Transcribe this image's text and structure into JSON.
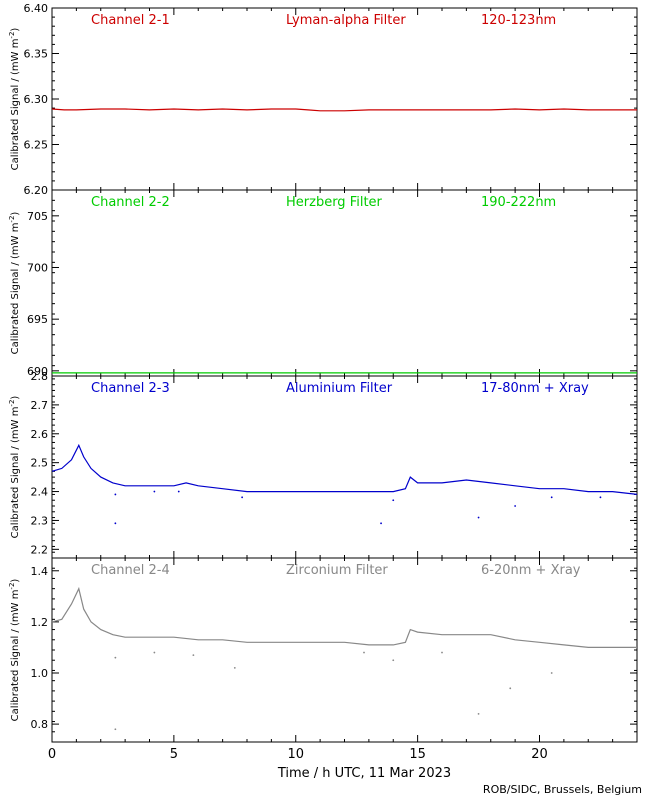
{
  "figure": {
    "xlabel": "Time / h UTC, 11 Mar 2023",
    "credit": "ROB/SIDC, Brussels, Belgium",
    "xlim": [
      0,
      24
    ],
    "xticks": [
      0,
      5,
      10,
      15,
      20
    ]
  },
  "chart_data": [
    {
      "type": "line",
      "channel": "Channel 2-1",
      "filter": "Lyman-alpha Filter",
      "band": "120-123nm",
      "color": "#cc0000",
      "ylabel": "Calibrated Signal / (mW m",
      "ylabel_sup": "-2",
      "ylabel_close": ")",
      "ylim": [
        6.2,
        6.4
      ],
      "yticks": [
        6.2,
        6.25,
        6.3,
        6.35,
        6.4
      ],
      "yticklabels": [
        "6.20",
        "6.25",
        "6.30",
        "6.35",
        "6.40"
      ],
      "x": [
        0,
        0.5,
        1,
        2,
        3,
        4,
        5,
        6,
        7,
        8,
        9,
        10,
        10.5,
        11,
        12,
        13,
        14,
        15,
        16,
        17,
        18,
        19,
        20,
        21,
        22,
        23,
        24
      ],
      "y": [
        6.289,
        6.288,
        6.288,
        6.289,
        6.289,
        6.288,
        6.289,
        6.288,
        6.289,
        6.288,
        6.289,
        6.289,
        6.288,
        6.287,
        6.287,
        6.288,
        6.288,
        6.288,
        6.288,
        6.288,
        6.288,
        6.289,
        6.288,
        6.289,
        6.288,
        6.288,
        6.288
      ],
      "outliers": []
    },
    {
      "type": "line",
      "channel": "Channel 2-2",
      "filter": "Herzberg Filter",
      "band": "190-222nm",
      "color": "#00cc00",
      "ylabel": "Calibrated Signal / (mW m",
      "ylabel_sup": "-2",
      "ylabel_close": ")",
      "ylim": [
        689.5,
        707.5
      ],
      "yticks": [
        690,
        695,
        700,
        705
      ],
      "yticklabels": [
        "690",
        "695",
        "700",
        "705"
      ],
      "x": [
        0,
        24
      ],
      "y": [
        689.8,
        689.8
      ],
      "outliers": []
    },
    {
      "type": "line",
      "channel": "Channel 2-3",
      "filter": "Aluminium Filter",
      "band": "17-80nm + Xray",
      "color": "#0000cc",
      "ylabel": "Calibrated Signal / (mW m",
      "ylabel_sup": "-2",
      "ylabel_close": ")",
      "ylim": [
        2.17,
        2.8
      ],
      "yticks": [
        2.2,
        2.3,
        2.4,
        2.5,
        2.6,
        2.7,
        2.8
      ],
      "yticklabels": [
        "2.2",
        "2.3",
        "2.4",
        "2.5",
        "2.6",
        "2.7",
        "2.8"
      ],
      "x": [
        0,
        0.4,
        0.8,
        1.1,
        1.3,
        1.6,
        2,
        2.5,
        3,
        4,
        5,
        5.5,
        6,
        7,
        8,
        9,
        10,
        11,
        12,
        13,
        14,
        14.5,
        14.7,
        15,
        16,
        17,
        18,
        19,
        20,
        21,
        22,
        23,
        24
      ],
      "y": [
        2.47,
        2.48,
        2.51,
        2.56,
        2.52,
        2.48,
        2.45,
        2.43,
        2.42,
        2.42,
        2.42,
        2.43,
        2.42,
        2.41,
        2.4,
        2.4,
        2.4,
        2.4,
        2.4,
        2.4,
        2.4,
        2.41,
        2.45,
        2.43,
        2.43,
        2.44,
        2.43,
        2.42,
        2.41,
        2.41,
        2.4,
        2.4,
        2.39
      ],
      "outliers": [
        [
          2.6,
          2.29
        ],
        [
          2.6,
          2.39
        ],
        [
          4.2,
          2.4
        ],
        [
          5.2,
          2.4
        ],
        [
          7.8,
          2.38
        ],
        [
          13.5,
          2.29
        ],
        [
          14,
          2.37
        ],
        [
          17.5,
          2.31
        ],
        [
          19,
          2.35
        ],
        [
          20.5,
          2.38
        ],
        [
          22.5,
          2.38
        ]
      ]
    },
    {
      "type": "line",
      "channel": "Channel 2-4",
      "filter": "Zirconium Filter",
      "band": "6-20nm + Xray",
      "color": "#888888",
      "ylabel": "Calibrated Signal / (mW m",
      "ylabel_sup": "-2",
      "ylabel_close": ")",
      "ylim": [
        0.73,
        1.45
      ],
      "yticks": [
        0.8,
        1.0,
        1.2,
        1.4
      ],
      "yticklabels": [
        "0.8",
        "1.0",
        "1.2",
        "1.4"
      ],
      "x": [
        0,
        0.4,
        0.8,
        1.1,
        1.3,
        1.6,
        2,
        2.5,
        3,
        4,
        5,
        6,
        7,
        8,
        9,
        10,
        11,
        12,
        13,
        14,
        14.5,
        14.7,
        15,
        16,
        17,
        18,
        19,
        20,
        21,
        22,
        23,
        24
      ],
      "y": [
        1.2,
        1.21,
        1.27,
        1.33,
        1.25,
        1.2,
        1.17,
        1.15,
        1.14,
        1.14,
        1.14,
        1.13,
        1.13,
        1.12,
        1.12,
        1.12,
        1.12,
        1.12,
        1.11,
        1.11,
        1.12,
        1.17,
        1.16,
        1.15,
        1.15,
        1.15,
        1.13,
        1.12,
        1.11,
        1.1,
        1.1,
        1.1
      ],
      "outliers": [
        [
          2.6,
          1.06
        ],
        [
          2.6,
          0.78
        ],
        [
          4.2,
          1.08
        ],
        [
          5.8,
          1.07
        ],
        [
          7.5,
          1.02
        ],
        [
          12.8,
          1.08
        ],
        [
          14,
          1.05
        ],
        [
          16,
          1.08
        ],
        [
          17.5,
          0.84
        ],
        [
          18.8,
          0.94
        ],
        [
          20.5,
          1.0
        ]
      ]
    }
  ]
}
